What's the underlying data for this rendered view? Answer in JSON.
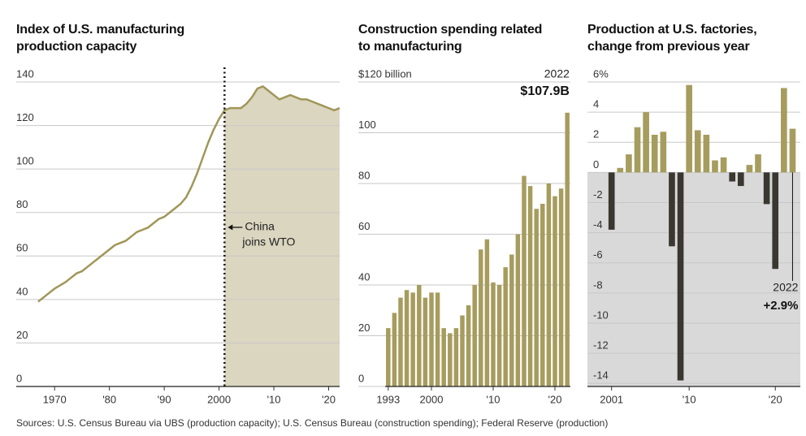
{
  "chart_data": [
    {
      "type": "line",
      "title": "Index of U.S. manufacturing production capacity",
      "x": [
        1967,
        1968,
        1969,
        1970,
        1971,
        1972,
        1973,
        1974,
        1975,
        1976,
        1977,
        1978,
        1979,
        1980,
        1981,
        1982,
        1983,
        1984,
        1985,
        1986,
        1987,
        1988,
        1989,
        1990,
        1991,
        1992,
        1993,
        1994,
        1995,
        1996,
        1997,
        1998,
        1999,
        2000,
        2001,
        2002,
        2003,
        2004,
        2005,
        2006,
        2007,
        2008,
        2009,
        2010,
        2011,
        2012,
        2013,
        2014,
        2015,
        2016,
        2017,
        2018,
        2019,
        2020,
        2021,
        2022
      ],
      "values": [
        39,
        41,
        43,
        45,
        46.5,
        48,
        50,
        52,
        53,
        55,
        57,
        59,
        61,
        63,
        65,
        66,
        67,
        69,
        71,
        72,
        73,
        75,
        77,
        78,
        80,
        82,
        84,
        87,
        92,
        98,
        105,
        112,
        118,
        123,
        127,
        128,
        128,
        128,
        130,
        133,
        137,
        138,
        136,
        134,
        132,
        133,
        134,
        133,
        132,
        132,
        131,
        130,
        129,
        128,
        127,
        128
      ],
      "color": "#a09658",
      "shade_color": "#dbd6c0",
      "xlim": [
        1963,
        2022
      ],
      "xticks": [
        1970,
        {
          "value": 1980,
          "label": "'80"
        },
        {
          "value": 1990,
          "label": "'90"
        },
        2000,
        {
          "value": 2010,
          "label": "'10"
        },
        {
          "value": 2020,
          "label": "'20"
        }
      ],
      "ylim": [
        0,
        140
      ],
      "yticks": [
        0,
        20,
        40,
        60,
        80,
        100,
        120,
        140
      ],
      "grid": true,
      "annotation": {
        "x": 2001,
        "text": [
          "China",
          "joins WTO"
        ]
      }
    },
    {
      "type": "bar",
      "title": "Construction spending related to manufacturing",
      "x": [
        1993,
        1994,
        1995,
        1996,
        1997,
        1998,
        1999,
        2000,
        2001,
        2002,
        2003,
        2004,
        2005,
        2006,
        2007,
        2008,
        2009,
        2010,
        2011,
        2012,
        2013,
        2014,
        2015,
        2016,
        2017,
        2018,
        2019,
        2020,
        2021,
        2022
      ],
      "values": [
        23,
        29,
        35,
        38,
        37,
        40,
        35,
        37,
        37,
        23,
        21,
        23,
        28,
        32,
        40,
        54,
        58,
        41,
        40,
        47,
        52,
        60,
        83,
        79,
        70,
        72,
        80,
        75,
        78,
        107.9
      ],
      "color": "#a69c5e",
      "xlim": [
        1992.5,
        2022.5
      ],
      "xticks": [
        1993,
        2000,
        {
          "value": 2010,
          "label": "'10"
        },
        {
          "value": 2020,
          "label": "'20"
        }
      ],
      "ylim": [
        0,
        120
      ],
      "yticks": [
        0,
        20,
        40,
        60,
        80,
        100,
        {
          "value": 120,
          "label": "$120 billion"
        }
      ],
      "grid": true,
      "annotation": {
        "x": 2022,
        "label": "2022",
        "value_label": "$107.9B"
      }
    },
    {
      "type": "bar",
      "title": "Production at U.S. factories, change from previous year",
      "x": [
        2001,
        2002,
        2003,
        2004,
        2005,
        2006,
        2007,
        2008,
        2009,
        2010,
        2011,
        2012,
        2013,
        2014,
        2015,
        2016,
        2017,
        2018,
        2019,
        2020,
        2021,
        2022
      ],
      "values": [
        -3.8,
        0.3,
        1.2,
        3.0,
        4.0,
        2.5,
        2.7,
        -4.9,
        -13.8,
        5.8,
        2.8,
        2.5,
        0.8,
        1.0,
        -0.6,
        -0.9,
        0.5,
        1.2,
        -2.1,
        -6.4,
        5.6,
        2.9
      ],
      "color": "#a69c5e",
      "negative_color": "#3a3730",
      "negative_background": "#d9d9d9",
      "xlim": [
        1998.2,
        2022.9
      ],
      "xticks": [
        2001,
        {
          "value": 2010,
          "label": "'10"
        },
        {
          "value": 2020,
          "label": "'20"
        }
      ],
      "ylim": [
        -14.2,
        6
      ],
      "yticks": [
        -14,
        -12,
        -10,
        -8,
        -6,
        -4,
        -2,
        0,
        2,
        4,
        {
          "value": 6,
          "label": "6%"
        }
      ],
      "grid": true,
      "annotation": {
        "x": 2022,
        "label": "2022",
        "value_label": "+2.9%"
      }
    }
  ],
  "footer": "Sources: U.S. Census Bureau via UBS (production capacity); U.S. Census Bureau (construction spending); Federal Reserve (production)"
}
